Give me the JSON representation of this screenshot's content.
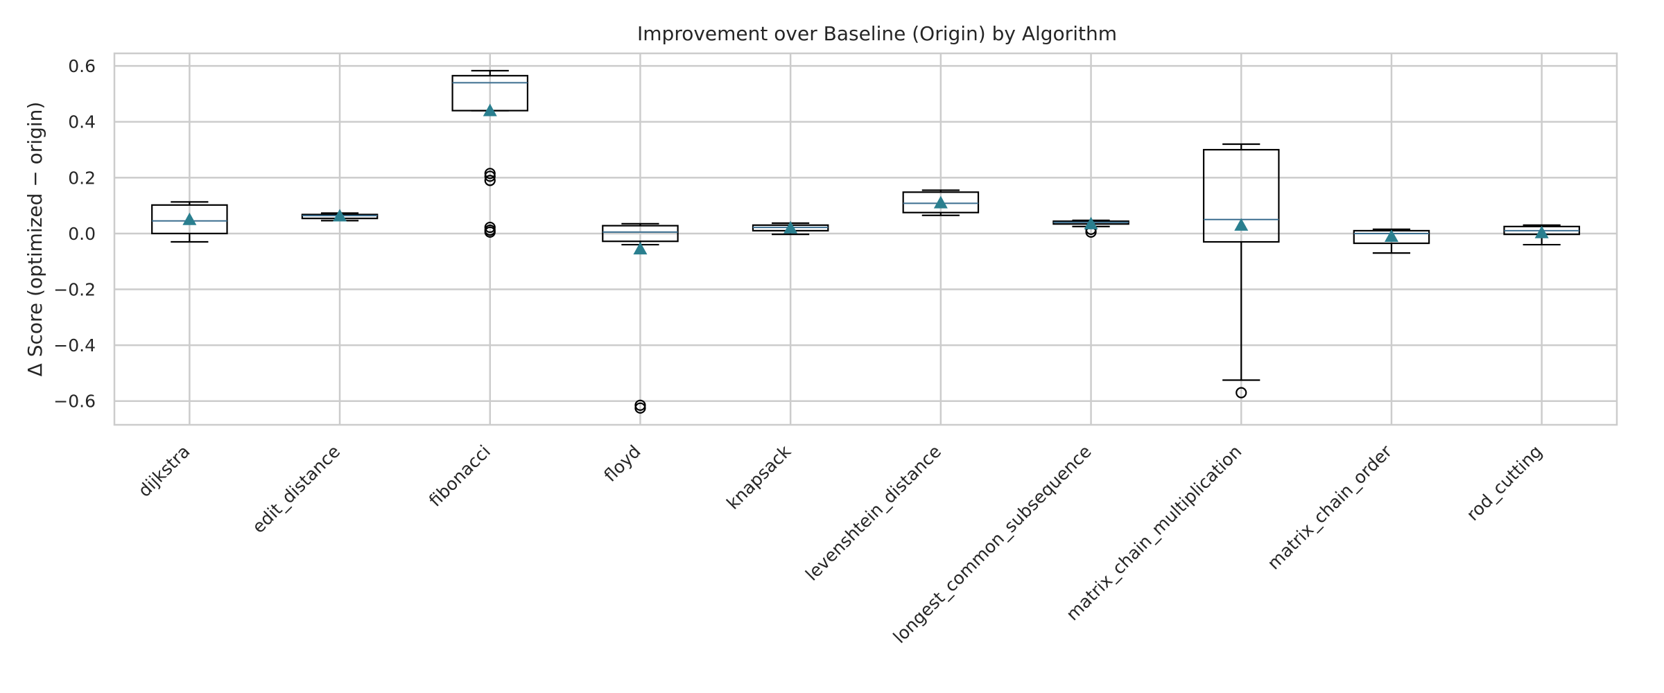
{
  "chart_data": {
    "type": "boxplot",
    "title": "Improvement over Baseline (Origin) by Algorithm",
    "xlabel": "",
    "ylabel": "Δ Score (optimized − origin)",
    "ylim": [
      -0.685,
      0.645
    ],
    "yticks": [
      -0.6,
      -0.4,
      -0.2,
      0.0,
      0.2,
      0.4,
      0.6
    ],
    "ytick_labels": [
      "−0.6",
      "−0.4",
      "−0.2",
      "0.0",
      "0.2",
      "0.4",
      "0.6"
    ],
    "grid": true,
    "show_means": true,
    "colors": {
      "box_edge": "#000000",
      "median": "#3b6e8f",
      "mean_marker": "#2a7f8f",
      "grid": "#cccccc",
      "axes": "#cccccc"
    },
    "categories": [
      "dijkstra",
      "edit_distance",
      "fibonacci",
      "floyd",
      "knapsack",
      "levenshtein_distance",
      "longest_common_subsequence",
      "matrix_chain_multiplication",
      "matrix_chain_order",
      "rod_cutting"
    ],
    "boxes": [
      {
        "whisker_low": -0.03,
        "q1": 0.0,
        "median": 0.045,
        "q3": 0.102,
        "whisker_high": 0.113,
        "mean": 0.05,
        "outliers": []
      },
      {
        "whisker_low": 0.046,
        "q1": 0.054,
        "median": 0.064,
        "q3": 0.068,
        "whisker_high": 0.073,
        "mean": 0.063,
        "outliers": []
      },
      {
        "whisker_low": 0.44,
        "q1": 0.44,
        "median": 0.54,
        "q3": 0.565,
        "whisker_high": 0.583,
        "mean": 0.44,
        "outliers": [
          0.215,
          0.205,
          0.19,
          0.022,
          0.012,
          0.005
        ]
      },
      {
        "whisker_low": -0.04,
        "q1": -0.028,
        "median": 0.005,
        "q3": 0.028,
        "whisker_high": 0.035,
        "mean": -0.055,
        "outliers": [
          -0.615,
          -0.625
        ]
      },
      {
        "whisker_low": -0.003,
        "q1": 0.01,
        "median": 0.022,
        "q3": 0.03,
        "whisker_high": 0.037,
        "mean": 0.02,
        "outliers": []
      },
      {
        "whisker_low": 0.065,
        "q1": 0.075,
        "median": 0.108,
        "q3": 0.148,
        "whisker_high": 0.155,
        "mean": 0.11,
        "outliers": []
      },
      {
        "whisker_low": 0.025,
        "q1": 0.034,
        "median": 0.04,
        "q3": 0.044,
        "whisker_high": 0.047,
        "mean": 0.035,
        "outliers": [
          0.015,
          0.005
        ]
      },
      {
        "whisker_low": -0.525,
        "q1": -0.03,
        "median": 0.05,
        "q3": 0.3,
        "whisker_high": 0.32,
        "mean": 0.03,
        "outliers": [
          -0.57
        ]
      },
      {
        "whisker_low": -0.07,
        "q1": -0.035,
        "median": 0.0,
        "q3": 0.01,
        "whisker_high": 0.015,
        "mean": -0.01,
        "outliers": []
      },
      {
        "whisker_low": -0.04,
        "q1": -0.003,
        "median": 0.01,
        "q3": 0.025,
        "whisker_high": 0.03,
        "mean": 0.003,
        "outliers": []
      }
    ]
  }
}
